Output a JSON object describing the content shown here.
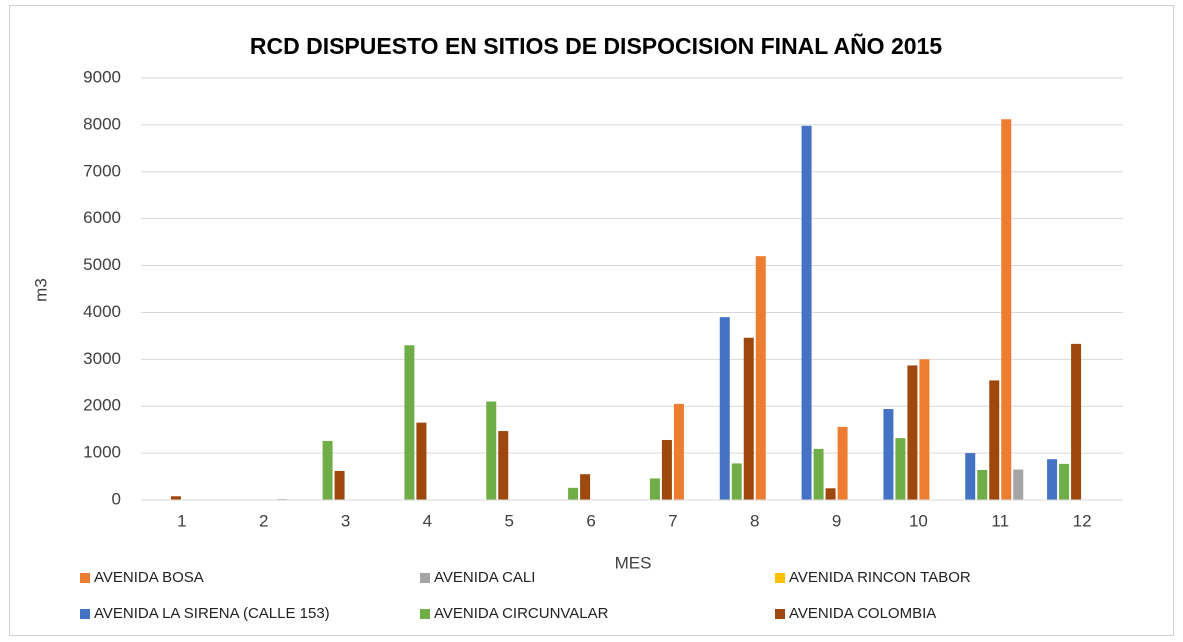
{
  "chart_data": {
    "type": "bar",
    "title": "RCD DISPUESTO EN SITIOS DE DISPOCISION FINAL AÑO 2015",
    "x_label": "MES",
    "y_label": "m3",
    "categories": [
      "1",
      "2",
      "3",
      "4",
      "5",
      "6",
      "7",
      "8",
      "9",
      "10",
      "11",
      "12"
    ],
    "series": [
      {
        "name": "AVENIDA BOSA",
        "color": "#ed7d31",
        "values": [
          0,
          0,
          0,
          0,
          0,
          0,
          2050,
          5200,
          1560,
          3000,
          8120,
          0
        ]
      },
      {
        "name": "AVENIDA CALI",
        "color": "#a5a5a5",
        "values": [
          0,
          20,
          0,
          0,
          0,
          0,
          0,
          0,
          0,
          0,
          650,
          0
        ]
      },
      {
        "name": "AVENIDA RINCON TABOR",
        "color": "#ffc000",
        "values": [
          0,
          0,
          0,
          0,
          0,
          0,
          0,
          0,
          0,
          0,
          0,
          0
        ]
      },
      {
        "name": "AVENIDA LA SIRENA (CALLE 153)",
        "color": "#4472c4",
        "values": [
          0,
          0,
          0,
          0,
          0,
          0,
          0,
          3900,
          7980,
          1940,
          1000,
          870
        ]
      },
      {
        "name": "AVENIDA CIRCUNVALAR",
        "color": "#70ad47",
        "values": [
          0,
          0,
          1260,
          3300,
          2100,
          260,
          460,
          780,
          1090,
          1320,
          640,
          770
        ]
      },
      {
        "name": "AVENIDA COLOMBIA",
        "color": "#9e480e",
        "values": [
          80,
          0,
          620,
          1650,
          1470,
          550,
          1280,
          3460,
          250,
          2870,
          2550,
          3330
        ]
      }
    ],
    "ylim": [
      0,
      9000
    ],
    "yticks": [
      0,
      1000,
      2000,
      3000,
      4000,
      5000,
      6000,
      7000,
      8000,
      9000
    ],
    "grid": true,
    "legend": "bottom"
  }
}
